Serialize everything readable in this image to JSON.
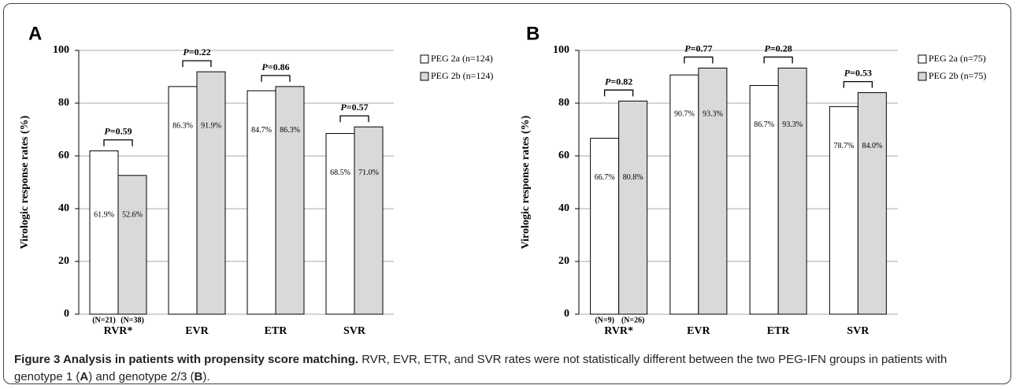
{
  "chart_data": [
    {
      "type": "bar",
      "panel_label": "A",
      "y_label": "Virologic response rates  (%)",
      "categories": [
        "RVR*",
        "EVR",
        "ETR",
        "SVR"
      ],
      "series": [
        {
          "name": "PEG 2a (n=124)",
          "color": "#ffffff",
          "values": [
            61.9,
            86.3,
            84.7,
            68.5
          ],
          "value_labels": [
            "61.9%",
            "86.3%",
            "84.7%",
            "68.5%"
          ],
          "sample_labels": [
            "(N=21)",
            null,
            null,
            null
          ]
        },
        {
          "name": "PEG 2b (n=124)",
          "color": "#d9d9d9",
          "values": [
            52.6,
            91.9,
            86.3,
            71.0
          ],
          "value_labels": [
            "52.6%",
            "91.9%",
            "86.3%",
            "71.0%"
          ],
          "sample_labels": [
            "(N=38)",
            null,
            null,
            null
          ]
        }
      ],
      "p_values": [
        "P=0.59",
        "P=0.22",
        "P=0.86",
        "P=0.57"
      ],
      "ylim": [
        0,
        100
      ],
      "yticks": [
        0,
        20,
        40,
        60,
        80,
        100
      ],
      "grid": true
    },
    {
      "type": "bar",
      "panel_label": "B",
      "y_label": "Virologic response rates  (%)",
      "categories": [
        "RVR*",
        "EVR",
        "ETR",
        "SVR"
      ],
      "series": [
        {
          "name": "PEG 2a (n=75)",
          "color": "#ffffff",
          "values": [
            66.7,
            90.7,
            86.7,
            78.7
          ],
          "value_labels": [
            "66.7%",
            "90.7%",
            "86.7%",
            "78.7%"
          ],
          "sample_labels": [
            "(N=9)",
            null,
            null,
            null
          ]
        },
        {
          "name": "PEG 2b (n=75)",
          "color": "#d9d9d9",
          "values": [
            80.8,
            93.3,
            93.3,
            84.0
          ],
          "value_labels": [
            "80.8%",
            "93.3%",
            "93.3%",
            "84.0%"
          ],
          "sample_labels": [
            "(N=26)",
            null,
            null,
            null
          ]
        }
      ],
      "p_values": [
        "P=0.82",
        "P=0.77",
        "P=0.28",
        "P=0.53"
      ],
      "ylim": [
        0,
        100
      ],
      "yticks": [
        0,
        20,
        40,
        60,
        80,
        100
      ],
      "grid": true
    }
  ],
  "caption": {
    "title": "Figure 3 Analysis in patients with propensity score matching.",
    "parts": [
      "RVR, EVR, ETR, and SVR rates were not statistically different between the two PEG-IFN groups in patients with genotype 1 (",
      "A",
      ") and genotype 2/3 (",
      "B",
      ")."
    ]
  }
}
